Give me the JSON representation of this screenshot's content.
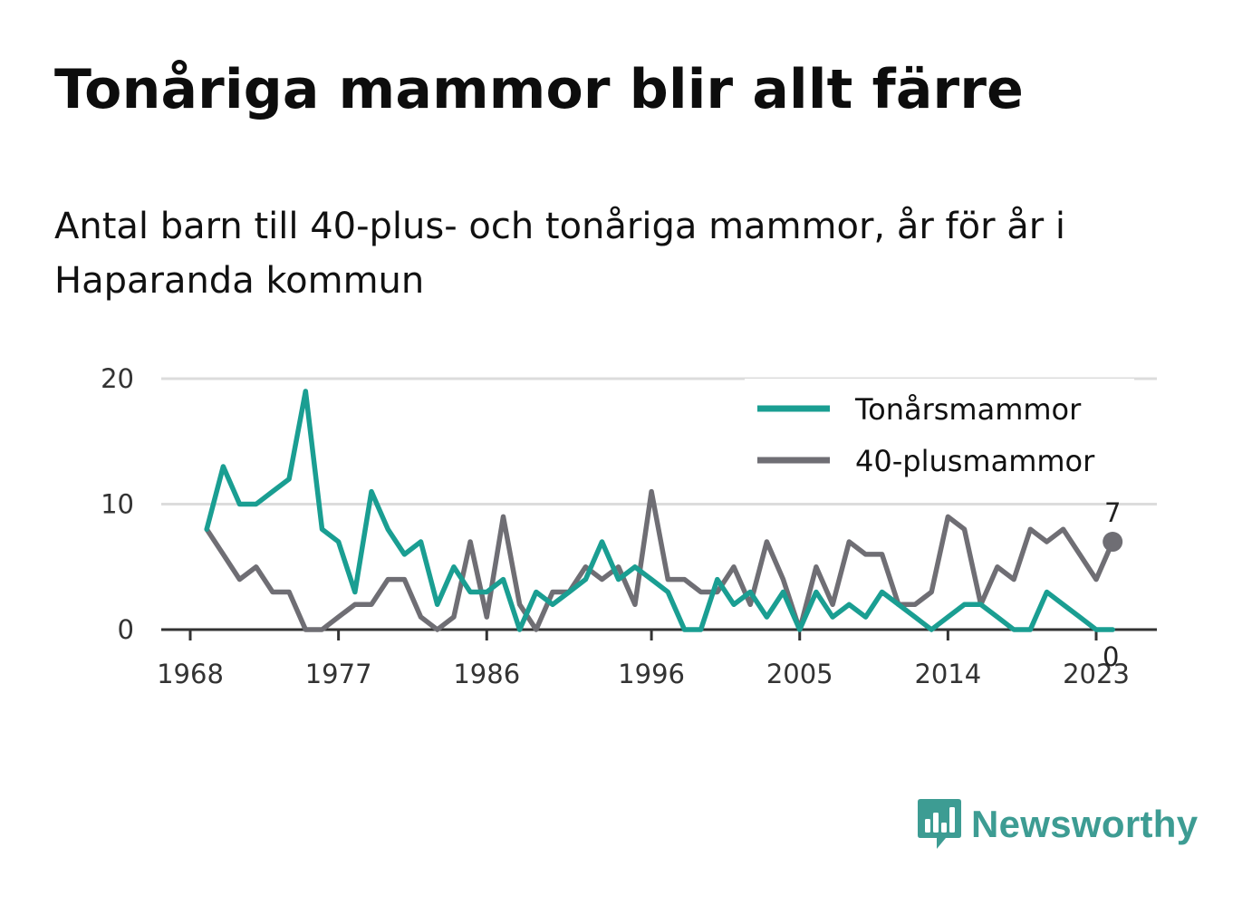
{
  "title": "Tonåriga mammor blir allt färre",
  "subtitle": "Antal barn till 40-plus- och tonåriga mammor, år för år i Haparanda kommun",
  "brand": {
    "name": "Newsworthy",
    "icon": "newsworthy-logo-icon",
    "color": "#3d9c93"
  },
  "chart_data": {
    "type": "line",
    "x": [
      1969,
      1970,
      1971,
      1972,
      1973,
      1974,
      1975,
      1976,
      1977,
      1978,
      1979,
      1980,
      1981,
      1982,
      1983,
      1984,
      1985,
      1986,
      1987,
      1988,
      1989,
      1990,
      1991,
      1992,
      1993,
      1994,
      1995,
      1996,
      1997,
      1998,
      1999,
      2000,
      2001,
      2002,
      2003,
      2004,
      2005,
      2006,
      2007,
      2008,
      2009,
      2010,
      2011,
      2012,
      2013,
      2014,
      2015,
      2016,
      2017,
      2018,
      2019,
      2020,
      2021,
      2022,
      2023,
      2024
    ],
    "series": [
      {
        "name": "Tonårsmammor",
        "color": "#1a9e92",
        "values": [
          8,
          13,
          10,
          10,
          11,
          12,
          19,
          8,
          7,
          3,
          11,
          8,
          6,
          7,
          2,
          5,
          3,
          3,
          4,
          0,
          3,
          2,
          3,
          4,
          7,
          4,
          5,
          4,
          3,
          0,
          0,
          4,
          2,
          3,
          1,
          3,
          0,
          3,
          1,
          2,
          1,
          3,
          2,
          1,
          0,
          1,
          2,
          2,
          1,
          0,
          0,
          3,
          2,
          1,
          0,
          0
        ]
      },
      {
        "name": "40-plusmammor",
        "color": "#6f6e74",
        "values": [
          8,
          6,
          4,
          5,
          3,
          3,
          0,
          0,
          1,
          2,
          2,
          4,
          4,
          1,
          0,
          1,
          7,
          1,
          9,
          2,
          0,
          3,
          3,
          5,
          4,
          5,
          2,
          11,
          4,
          4,
          3,
          3,
          5,
          2,
          7,
          4,
          0,
          5,
          2,
          7,
          6,
          6,
          2,
          2,
          3,
          9,
          8,
          2,
          5,
          4,
          8,
          7,
          8,
          6,
          4,
          7
        ]
      }
    ],
    "x_ticks": [
      "1968",
      "1977",
      "1986",
      "1996",
      "2005",
      "2014",
      "2023"
    ],
    "y_ticks": [
      "0",
      "10",
      "20"
    ],
    "ylim": [
      0,
      20
    ],
    "grid": true,
    "legend_position": "top-right",
    "end_labels": [
      {
        "series": "40-plusmammor",
        "text": "7"
      },
      {
        "series": "Tonårsmammor",
        "text": "0"
      }
    ]
  }
}
